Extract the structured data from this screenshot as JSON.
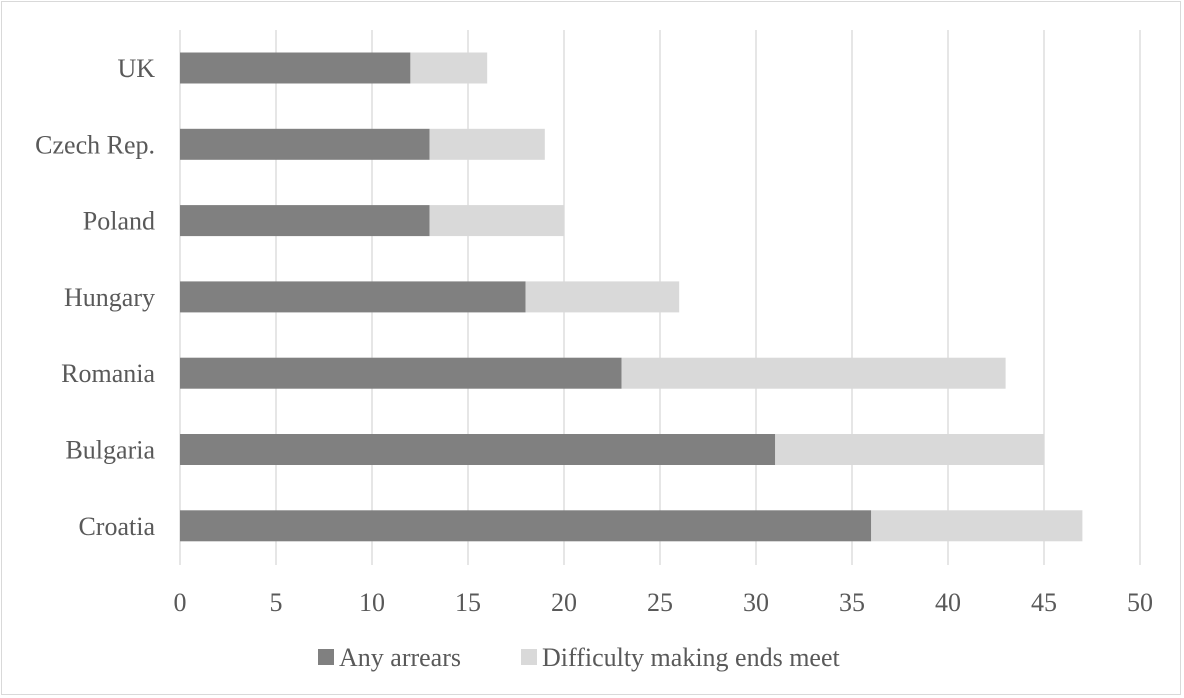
{
  "chart_data": {
    "type": "bar",
    "orientation": "horizontal",
    "stacked": true,
    "categories": [
      "UK",
      "Czech Rep.",
      "Poland",
      "Hungary",
      "Romania",
      "Bulgaria",
      "Croatia"
    ],
    "series": [
      {
        "name": "Any arrears",
        "values": [
          12,
          13,
          13,
          18,
          23,
          31,
          36
        ],
        "color": "#808080"
      },
      {
        "name": "Difficulty making ends meet",
        "values": [
          4,
          6,
          7,
          8,
          20,
          14,
          11
        ],
        "color": "#d9d9d9"
      }
    ],
    "xlim": [
      0,
      50
    ],
    "xticks": [
      "0",
      "5",
      "10",
      "15",
      "20",
      "25",
      "30",
      "35",
      "40",
      "45",
      "50"
    ],
    "grid": true,
    "legend_position": "bottom",
    "title": "",
    "xlabel": "",
    "ylabel": ""
  },
  "colors": {
    "gridline": "#d9d9d9",
    "axis_text": "#595959"
  }
}
